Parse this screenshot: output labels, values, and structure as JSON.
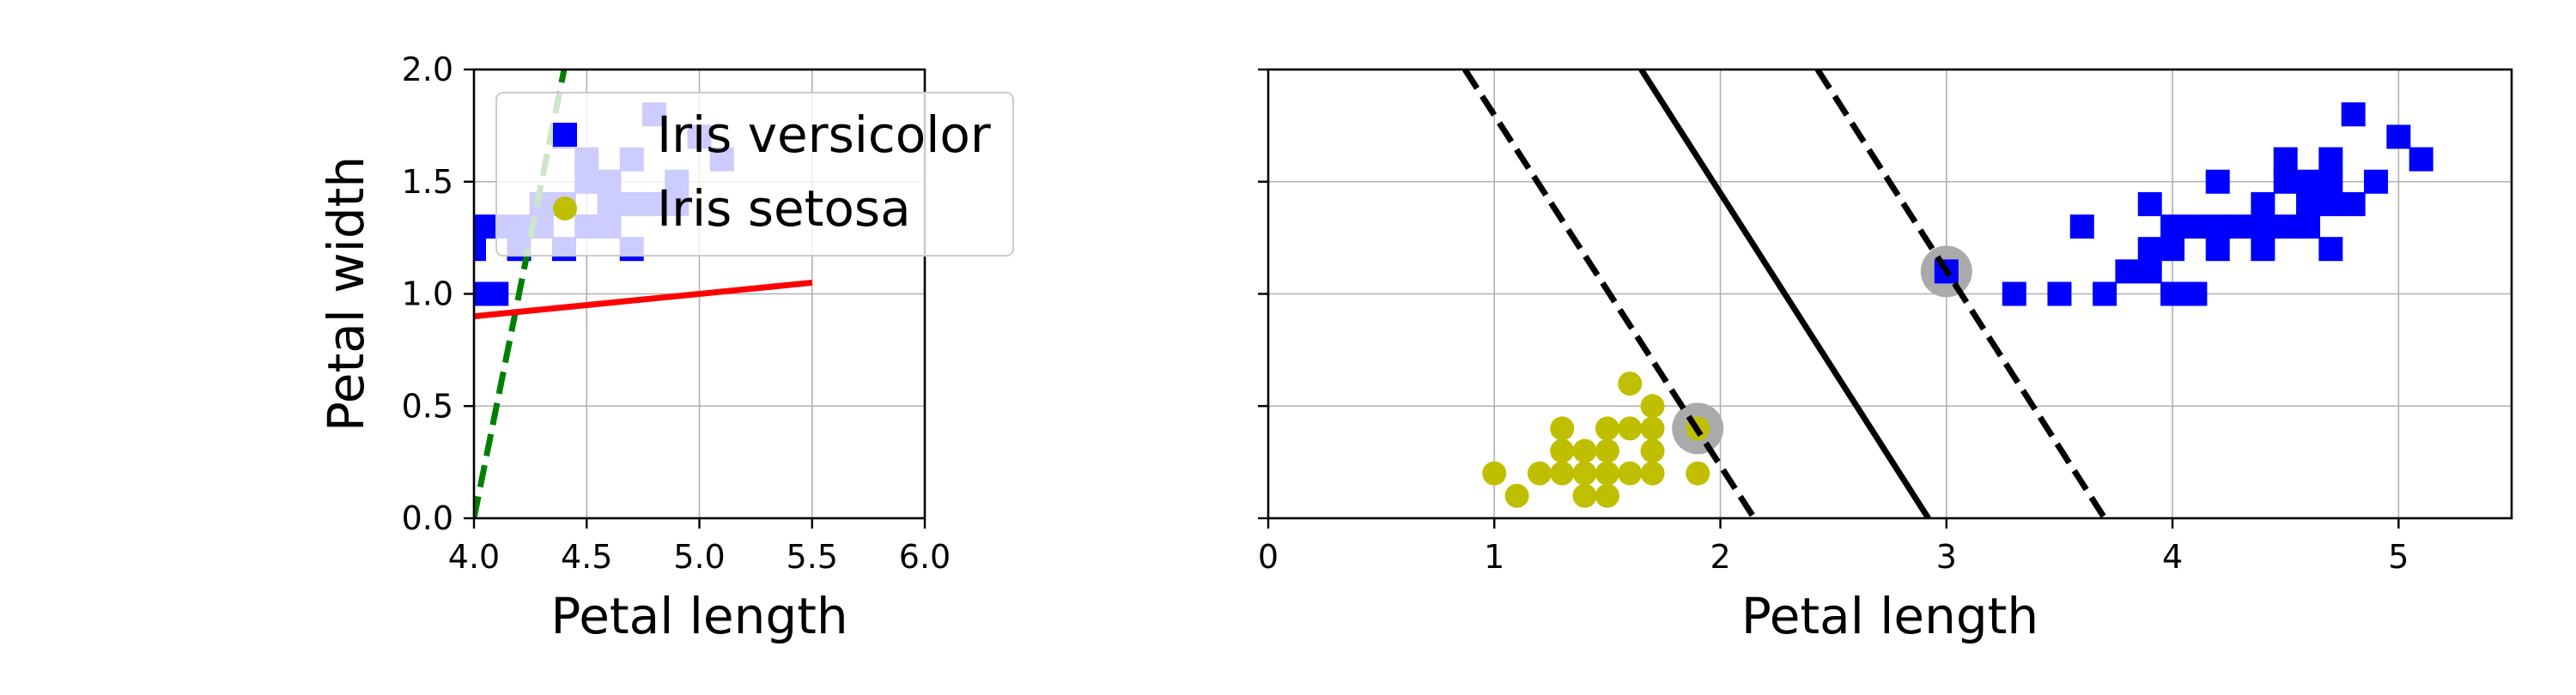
{
  "chart_data": [
    {
      "type": "scatter",
      "title": "",
      "xlabel": "Petal length",
      "ylabel": "Petal width",
      "xlim": [
        4.0,
        6.0
      ],
      "ylim": [
        0.0,
        2.0
      ],
      "xticks": [
        "4.0",
        "4.5",
        "5.0",
        "5.5",
        "6.0"
      ],
      "yticks": [
        "0.0",
        "0.5",
        "1.0",
        "1.5",
        "2.0"
      ],
      "grid": true,
      "legend_position": "upper-right",
      "series": [
        {
          "name": "Iris versicolor",
          "marker": "square",
          "color": "#0000ff",
          "points": [
            [
              4.0,
              1.3
            ],
            [
              4.1,
              1.3
            ],
            [
              4.0,
              1.2
            ],
            [
              4.2,
              1.3
            ],
            [
              4.4,
              1.4
            ],
            [
              4.6,
              1.4
            ],
            [
              4.7,
              1.4
            ],
            [
              4.5,
              1.5
            ],
            [
              4.9,
              1.5
            ],
            [
              4.7,
              1.6
            ],
            [
              4.4,
              1.7
            ],
            [
              4.8,
              1.8
            ],
            [
              4.0,
              1.0
            ],
            [
              4.1,
              1.0
            ],
            [
              4.3,
              1.3
            ],
            [
              4.5,
              1.3
            ],
            [
              4.4,
              1.2
            ],
            [
              4.7,
              1.2
            ],
            [
              4.2,
              1.2
            ],
            [
              4.3,
              1.4
            ],
            [
              4.6,
              1.3
            ],
            [
              4.8,
              1.4
            ],
            [
              5.0,
              1.7
            ],
            [
              5.1,
              1.6
            ],
            [
              4.5,
              1.6
            ],
            [
              4.9,
              1.4
            ],
            [
              4.6,
              1.5
            ],
            [
              4.0,
              1.0
            ]
          ]
        },
        {
          "name": "Iris setosa",
          "marker": "circle",
          "color": "#bfbf00",
          "points": []
        }
      ],
      "lines": [
        {
          "style": "dashed",
          "color": "#008000",
          "points": [
            [
              4.0,
              0.0
            ],
            [
              4.4,
              2.0
            ]
          ]
        },
        {
          "style": "solid",
          "color": "#ff0000",
          "points": [
            [
              4.0,
              0.9
            ],
            [
              5.5,
              1.05
            ]
          ]
        }
      ]
    },
    {
      "type": "scatter",
      "title": "",
      "xlabel": "Petal length",
      "ylabel": "",
      "xlim": [
        0,
        5.5
      ],
      "ylim": [
        0.0,
        2.0
      ],
      "xticks": [
        "0",
        "1",
        "2",
        "3",
        "4",
        "5"
      ],
      "yticks": [
        "",
        "",
        "",
        "",
        ""
      ],
      "grid": true,
      "series": [
        {
          "name": "Iris setosa",
          "marker": "circle",
          "color": "#bfbf00",
          "points": [
            [
              1.0,
              0.2
            ],
            [
              1.1,
              0.1
            ],
            [
              1.2,
              0.2
            ],
            [
              1.3,
              0.2
            ],
            [
              1.3,
              0.3
            ],
            [
              1.3,
              0.4
            ],
            [
              1.4,
              0.1
            ],
            [
              1.4,
              0.2
            ],
            [
              1.4,
              0.3
            ],
            [
              1.5,
              0.1
            ],
            [
              1.5,
              0.2
            ],
            [
              1.5,
              0.3
            ],
            [
              1.5,
              0.4
            ],
            [
              1.6,
              0.2
            ],
            [
              1.6,
              0.4
            ],
            [
              1.6,
              0.6
            ],
            [
              1.7,
              0.2
            ],
            [
              1.7,
              0.3
            ],
            [
              1.7,
              0.4
            ],
            [
              1.7,
              0.5
            ],
            [
              1.9,
              0.2
            ],
            [
              1.9,
              0.4
            ]
          ]
        },
        {
          "name": "Iris versicolor",
          "marker": "square",
          "color": "#0000ff",
          "points": [
            [
              3.0,
              1.1
            ],
            [
              3.3,
              1.0
            ],
            [
              3.5,
              1.0
            ],
            [
              3.6,
              1.3
            ],
            [
              3.7,
              1.0
            ],
            [
              3.8,
              1.1
            ],
            [
              3.9,
              1.1
            ],
            [
              3.9,
              1.2
            ],
            [
              3.9,
              1.4
            ],
            [
              4.0,
              1.0
            ],
            [
              4.0,
              1.2
            ],
            [
              4.0,
              1.3
            ],
            [
              4.1,
              1.0
            ],
            [
              4.1,
              1.3
            ],
            [
              4.2,
              1.2
            ],
            [
              4.2,
              1.3
            ],
            [
              4.2,
              1.5
            ],
            [
              4.3,
              1.3
            ],
            [
              4.4,
              1.2
            ],
            [
              4.4,
              1.3
            ],
            [
              4.4,
              1.4
            ],
            [
              4.5,
              1.3
            ],
            [
              4.5,
              1.5
            ],
            [
              4.5,
              1.6
            ],
            [
              4.6,
              1.3
            ],
            [
              4.6,
              1.4
            ],
            [
              4.6,
              1.5
            ],
            [
              4.7,
              1.2
            ],
            [
              4.7,
              1.4
            ],
            [
              4.7,
              1.5
            ],
            [
              4.7,
              1.6
            ],
            [
              4.8,
              1.4
            ],
            [
              4.8,
              1.8
            ],
            [
              4.9,
              1.5
            ],
            [
              5.0,
              1.7
            ],
            [
              5.1,
              1.6
            ]
          ]
        }
      ],
      "support_vectors": [
        [
          1.9,
          0.4
        ],
        [
          3.0,
          1.1
        ]
      ],
      "lines": [
        {
          "style": "solid",
          "color": "#000000",
          "points": [
            [
              1.65,
              2.0
            ],
            [
              2.92,
              0.0
            ]
          ]
        },
        {
          "style": "dashed",
          "color": "#000000",
          "points": [
            [
              0.87,
              2.0
            ],
            [
              2.15,
              0.0
            ]
          ]
        },
        {
          "style": "dashed",
          "color": "#000000",
          "points": [
            [
              2.43,
              2.0
            ],
            [
              3.7,
              0.0
            ]
          ]
        }
      ]
    }
  ]
}
